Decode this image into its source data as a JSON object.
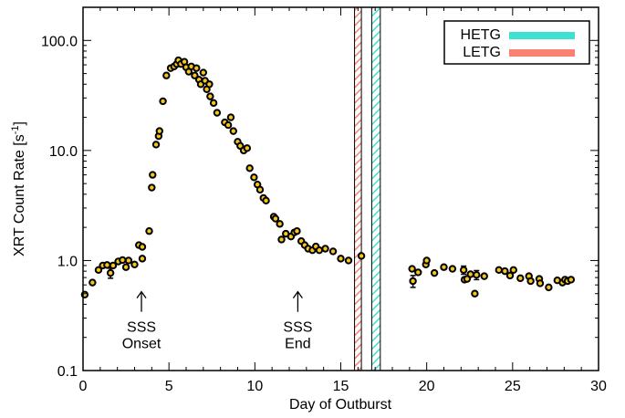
{
  "chart_data": {
    "type": "scatter",
    "xlabel": "Day of Outburst",
    "ylabel": "XRT Count Rate [s",
    "ylabel_sup": "-1",
    "ylabel_end": "]",
    "xlim": [
      0,
      30
    ],
    "ylim": [
      0.1,
      200
    ],
    "y_scale": "log",
    "x_ticks": [
      0,
      5,
      10,
      15,
      20,
      25,
      30
    ],
    "x_tick_labels": [
      "0",
      "5",
      "10",
      "15",
      "20",
      "25",
      "30"
    ],
    "y_ticks": [
      0.1,
      1,
      10,
      100
    ],
    "y_tick_labels": [
      "0.1",
      "1.0",
      "10.0",
      "100.0"
    ],
    "grid": false,
    "legend_position": "top-right",
    "legend": [
      {
        "name": "HETG",
        "color": "#40e0d0"
      },
      {
        "name": "LETG",
        "color": "#fa8072"
      }
    ],
    "observation_windows": [
      {
        "instrument": "LETG",
        "start": 15.8,
        "end": 16.2,
        "color": "#fa8072"
      },
      {
        "instrument": "HETG",
        "start": 16.8,
        "end": 17.3,
        "color": "#40e0d0"
      }
    ],
    "annotations": [
      {
        "lines": [
          "SSS",
          "Onset"
        ],
        "x": 3.4,
        "arrow_to_y": 0.52
      },
      {
        "lines": [
          "SSS",
          "End"
        ],
        "x": 12.5,
        "arrow_to_y": 0.52
      }
    ],
    "marker": {
      "fill": "#f5c518",
      "edge": "#000000"
    },
    "points": [
      {
        "x": 0.1,
        "y": 0.49
      },
      {
        "x": 0.55,
        "y": 0.63
      },
      {
        "x": 0.9,
        "y": 0.82
      },
      {
        "x": 1.15,
        "y": 0.9
      },
      {
        "x": 1.4,
        "y": 0.91
      },
      {
        "x": 1.6,
        "y": 0.77,
        "err": 0.08
      },
      {
        "x": 1.75,
        "y": 0.9
      },
      {
        "x": 2.05,
        "y": 0.98
      },
      {
        "x": 2.3,
        "y": 1.01
      },
      {
        "x": 2.5,
        "y": 0.87
      },
      {
        "x": 2.65,
        "y": 1.0
      },
      {
        "x": 3.0,
        "y": 0.92
      },
      {
        "x": 3.25,
        "y": 1.38
      },
      {
        "x": 3.45,
        "y": 1.33
      },
      {
        "x": 3.45,
        "y": 1.04
      },
      {
        "x": 3.85,
        "y": 1.85
      },
      {
        "x": 4.0,
        "y": 4.6
      },
      {
        "x": 4.05,
        "y": 6.0
      },
      {
        "x": 4.25,
        "y": 11.3
      },
      {
        "x": 4.4,
        "y": 13.5
      },
      {
        "x": 4.45,
        "y": 15.0
      },
      {
        "x": 4.65,
        "y": 28.0
      },
      {
        "x": 4.85,
        "y": 48.0
      },
      {
        "x": 5.1,
        "y": 56.0
      },
      {
        "x": 5.3,
        "y": 58.0
      },
      {
        "x": 5.45,
        "y": 61.0
      },
      {
        "x": 5.55,
        "y": 66.0
      },
      {
        "x": 5.7,
        "y": 61.0
      },
      {
        "x": 5.9,
        "y": 64.0
      },
      {
        "x": 6.0,
        "y": 57.0
      },
      {
        "x": 6.15,
        "y": 52.0
      },
      {
        "x": 6.3,
        "y": 58.0
      },
      {
        "x": 6.5,
        "y": 48.0
      },
      {
        "x": 6.6,
        "y": 56.0
      },
      {
        "x": 6.75,
        "y": 44.0
      },
      {
        "x": 6.85,
        "y": 40.0
      },
      {
        "x": 7.0,
        "y": 51.0
      },
      {
        "x": 7.1,
        "y": 43.0
      },
      {
        "x": 7.2,
        "y": 36.0
      },
      {
        "x": 7.35,
        "y": 40.0
      },
      {
        "x": 7.4,
        "y": 31.0
      },
      {
        "x": 7.6,
        "y": 27.0
      },
      {
        "x": 7.8,
        "y": 22.0
      },
      {
        "x": 8.25,
        "y": 18.0
      },
      {
        "x": 8.45,
        "y": 17.0
      },
      {
        "x": 8.6,
        "y": 20.0
      },
      {
        "x": 8.75,
        "y": 15.0
      },
      {
        "x": 9.0,
        "y": 12.0
      },
      {
        "x": 9.15,
        "y": 11.0
      },
      {
        "x": 9.35,
        "y": 10.0
      },
      {
        "x": 9.55,
        "y": 10.5
      },
      {
        "x": 9.7,
        "y": 6.9
      },
      {
        "x": 9.95,
        "y": 5.7
      },
      {
        "x": 10.15,
        "y": 4.9
      },
      {
        "x": 10.3,
        "y": 4.4
      },
      {
        "x": 10.5,
        "y": 3.7
      },
      {
        "x": 10.65,
        "y": 3.5
      },
      {
        "x": 11.1,
        "y": 2.5
      },
      {
        "x": 11.2,
        "y": 2.4
      },
      {
        "x": 11.45,
        "y": 2.15
      },
      {
        "x": 11.55,
        "y": 1.55
      },
      {
        "x": 11.8,
        "y": 1.75
      },
      {
        "x": 12.1,
        "y": 1.65
      },
      {
        "x": 12.3,
        "y": 1.8
      },
      {
        "x": 12.45,
        "y": 1.85
      },
      {
        "x": 12.7,
        "y": 1.5
      },
      {
        "x": 12.9,
        "y": 1.38
      },
      {
        "x": 13.1,
        "y": 1.28
      },
      {
        "x": 13.35,
        "y": 1.24
      },
      {
        "x": 13.55,
        "y": 1.34
      },
      {
        "x": 13.75,
        "y": 1.24
      },
      {
        "x": 14.1,
        "y": 1.28
      },
      {
        "x": 14.55,
        "y": 1.21
      },
      {
        "x": 15.0,
        "y": 1.04
      },
      {
        "x": 15.45,
        "y": 1.0
      },
      {
        "x": 16.2,
        "y": 1.1
      },
      {
        "x": 19.15,
        "y": 0.84
      },
      {
        "x": 19.2,
        "y": 0.65,
        "err": 0.08
      },
      {
        "x": 19.5,
        "y": 0.78
      },
      {
        "x": 19.95,
        "y": 0.92
      },
      {
        "x": 20.0,
        "y": 1.0
      },
      {
        "x": 20.45,
        "y": 0.77
      },
      {
        "x": 21.0,
        "y": 0.87
      },
      {
        "x": 21.5,
        "y": 0.84
      },
      {
        "x": 22.15,
        "y": 0.82,
        "err": 0.07
      },
      {
        "x": 22.2,
        "y": 0.67
      },
      {
        "x": 22.35,
        "y": 0.68
      },
      {
        "x": 22.55,
        "y": 0.75
      },
      {
        "x": 22.8,
        "y": 0.5
      },
      {
        "x": 22.9,
        "y": 0.74,
        "err": 0.07
      },
      {
        "x": 23.35,
        "y": 0.72
      },
      {
        "x": 24.2,
        "y": 0.82
      },
      {
        "x": 24.55,
        "y": 0.8
      },
      {
        "x": 24.85,
        "y": 0.73
      },
      {
        "x": 25.05,
        "y": 0.82
      },
      {
        "x": 25.45,
        "y": 0.69
      },
      {
        "x": 25.95,
        "y": 0.72
      },
      {
        "x": 26.05,
        "y": 0.65
      },
      {
        "x": 26.55,
        "y": 0.68
      },
      {
        "x": 26.6,
        "y": 0.62
      },
      {
        "x": 27.1,
        "y": 0.57
      },
      {
        "x": 27.6,
        "y": 0.66
      },
      {
        "x": 27.9,
        "y": 0.63
      },
      {
        "x": 28.05,
        "y": 0.67
      },
      {
        "x": 28.2,
        "y": 0.65
      },
      {
        "x": 28.4,
        "y": 0.67
      }
    ]
  }
}
